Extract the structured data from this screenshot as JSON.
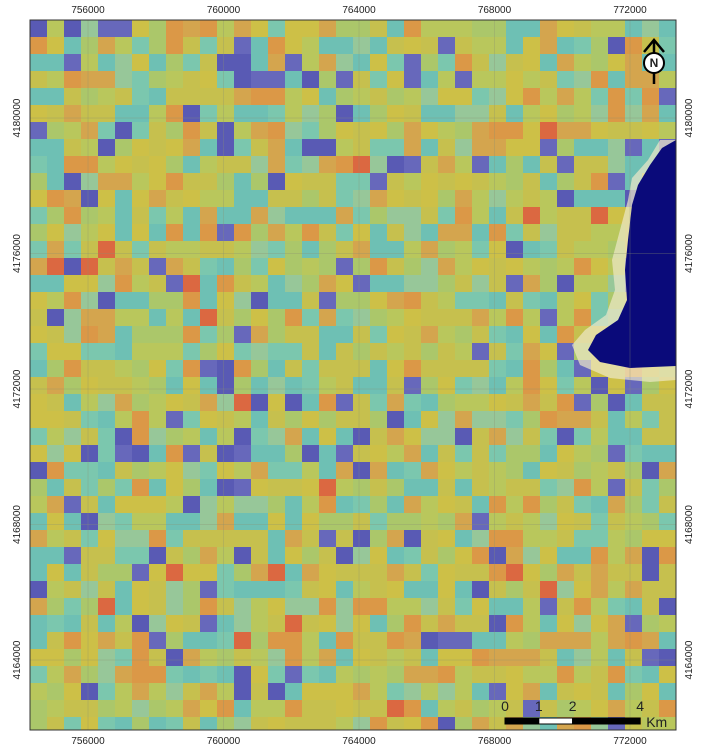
{
  "map": {
    "x_ticks": [
      756000,
      760000,
      764000,
      768000,
      772000
    ],
    "y_ticks": [
      4180000,
      4176000,
      4172000,
      4168000,
      4164000
    ],
    "north_label": "N",
    "scale_bar": {
      "ticks": [
        0,
        1,
        2,
        4
      ],
      "unit": "Km"
    }
  }
}
